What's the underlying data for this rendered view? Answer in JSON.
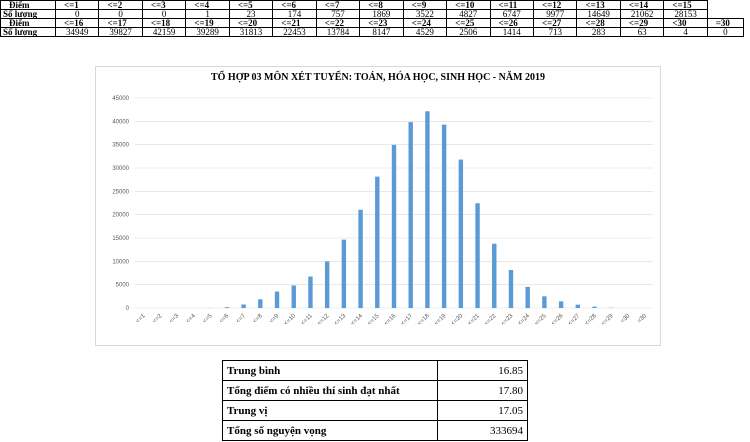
{
  "top_table": {
    "rows": [
      [
        "Điểm",
        "<=1",
        "<=2",
        "<=3",
        "<=4",
        "<=5",
        "<=6",
        "<=7",
        "<=8",
        "<=9",
        "<=10",
        "<=11",
        "<=12",
        "<=13",
        "<=14",
        "<=15"
      ],
      [
        "Số lượng",
        0,
        0,
        0,
        1,
        23,
        174,
        757,
        1869,
        3522,
        4827,
        6747,
        9977,
        14649,
        21062,
        28153
      ],
      [
        "Điểm",
        "<=16",
        "<=17",
        "<=18",
        "<=19",
        "<=20",
        "<=21",
        "<=22",
        "<=23",
        "<=24",
        "<=25",
        "<=26",
        "<=27",
        "<=28",
        "<=29",
        "<30",
        "=30"
      ],
      [
        "Số lượng",
        34949,
        39827,
        42159,
        39289,
        31813,
        22453,
        13784,
        8147,
        4529,
        2506,
        1414,
        713,
        283,
        63,
        4,
        0
      ]
    ]
  },
  "chart_data": {
    "type": "bar",
    "title": "TỔ HỢP 03 MÔN XÉT TUYỂN: TOÁN, HÓA HỌC, SINH HỌC - NĂM 2019",
    "categories": [
      "<=1",
      "<=2",
      "<=3",
      "<=4",
      "<=5",
      "<=6",
      "<=7",
      "<=8",
      "<=9",
      "<=10",
      "<=11",
      "<=12",
      "<=13",
      "<=14",
      "<=15",
      "<=16",
      "<=17",
      "<=18",
      "<=19",
      "<=20",
      "<=21",
      "<=22",
      "<=23",
      "<=24",
      "<=25",
      "<=26",
      "<=27",
      "<=28",
      "<=29",
      "<30",
      "=30"
    ],
    "values": [
      0,
      0,
      0,
      1,
      23,
      174,
      757,
      1869,
      3522,
      4827,
      6747,
      9977,
      14649,
      21062,
      28153,
      34949,
      39827,
      42159,
      39289,
      31813,
      22453,
      13784,
      8147,
      4529,
      2506,
      1414,
      713,
      283,
      63,
      4,
      0
    ],
    "color": "#5b9bd5",
    "ylim": [
      0,
      45000
    ],
    "yticks": [
      0,
      5000,
      10000,
      15000,
      20000,
      25000,
      30000,
      35000,
      40000,
      45000
    ],
    "grid": true
  },
  "summary_table": {
    "rows": [
      [
        "Trung bình",
        "16.85"
      ],
      [
        "Tổng điểm có nhiều thí sinh đạt nhất",
        "17.80"
      ],
      [
        "Trung vị",
        "17.05"
      ],
      [
        "Tổng số nguyện vọng",
        "333694"
      ]
    ]
  }
}
